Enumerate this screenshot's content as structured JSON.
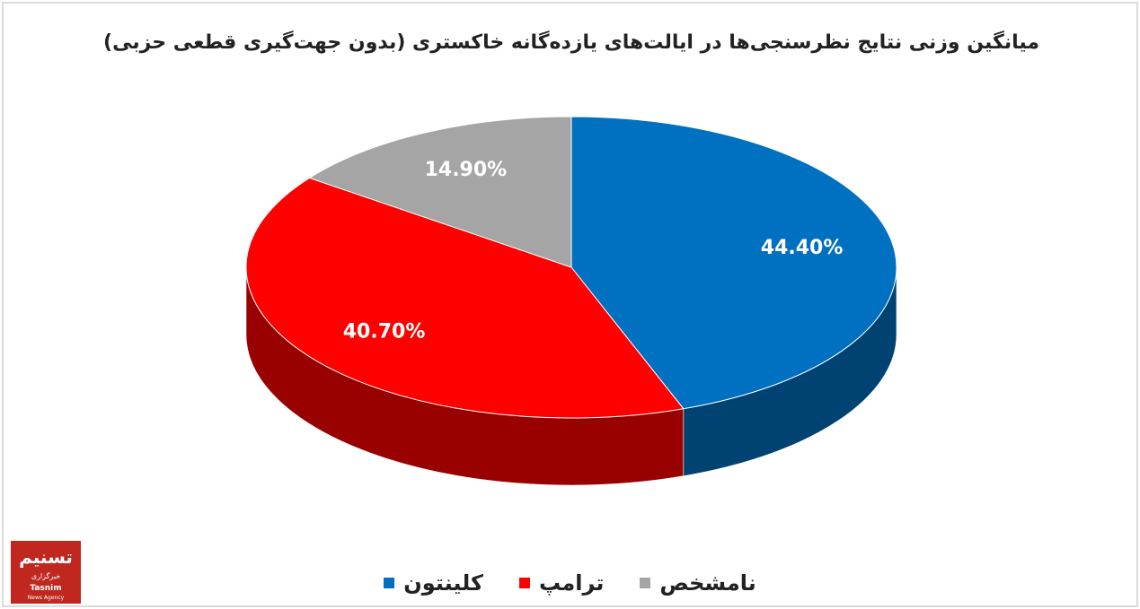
{
  "chart_data": {
    "type": "pie3d",
    "title": "میانگین وزنی نتایج نظرسنجی‌ها در ایالت‌های یازده‌گانه خاکستری (بدون جهت‌گیری قطعی حزبی)",
    "categories": [
      "کلینتون",
      "ترامپ",
      "نامشخص"
    ],
    "values": [
      44.4,
      40.7,
      14.9
    ],
    "value_labels": [
      "44.40%",
      "40.70%",
      "14.90%"
    ],
    "colors": [
      "#0070c0",
      "#ff0000",
      "#a5a5a5"
    ],
    "legend": "bottom"
  },
  "logo": {
    "name_fa": "تسنیم",
    "agency_fa": "خبرگزاری",
    "name": "Tasnim",
    "tagline": "News Agency"
  }
}
